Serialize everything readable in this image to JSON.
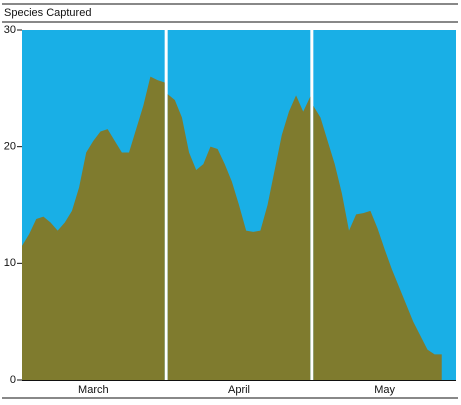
{
  "chart_data": {
    "type": "area",
    "title": "Species Captured",
    "ylim": [
      0,
      30
    ],
    "yticks": [
      0,
      10,
      20,
      30
    ],
    "background": "#19afe6",
    "color": "#7f7b2e",
    "series": [
      {
        "name": "March",
        "values": [
          11.5,
          12.5,
          13.8,
          14,
          13.5,
          12.8,
          13.5,
          14.5,
          16.5,
          19.5,
          20.5,
          21.3,
          21.5,
          20.5,
          19.5,
          19.5,
          21.5,
          23.5,
          26,
          25.7,
          25.5
        ]
      },
      {
        "name": "April",
        "values": [
          24.5,
          24,
          22.5,
          19.5,
          18,
          18.5,
          20,
          19.8,
          18.5,
          17,
          15,
          12.8,
          12.7,
          12.8,
          15,
          18,
          21,
          23,
          24.4,
          23,
          24.3
        ]
      },
      {
        "name": "May",
        "values": [
          23.5,
          22.5,
          20.5,
          18.5,
          16,
          12.8,
          14.2,
          14.3,
          14.5,
          13,
          11.2,
          9.5,
          8,
          6.5,
          5,
          3.8,
          2.6,
          2.2,
          2.2,
          null,
          null
        ]
      }
    ]
  }
}
